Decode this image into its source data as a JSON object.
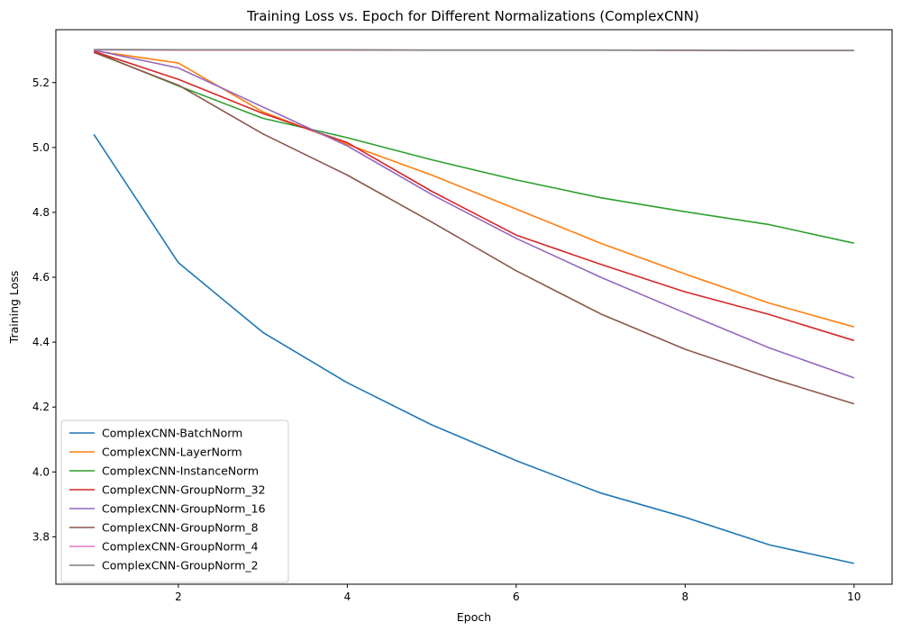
{
  "chart_data": {
    "type": "line",
    "title": "Training Loss vs. Epoch for Different Normalizations (ComplexCNN)",
    "xlabel": "Epoch",
    "ylabel": "Training Loss",
    "xlim": [
      0.55,
      10.45
    ],
    "ylim": [
      3.654,
      5.363
    ],
    "xticks": [
      2,
      4,
      6,
      8,
      10
    ],
    "yticks": [
      3.8,
      4.0,
      4.2,
      4.4,
      4.6,
      4.8,
      5.0,
      5.2
    ],
    "grid": false,
    "legend_position": "lower-left",
    "x": [
      1,
      2,
      3,
      4,
      5,
      6,
      7,
      8,
      9,
      10
    ],
    "series": [
      {
        "name": "ComplexCNN-BatchNorm",
        "color": "#1f77b4",
        "values": [
          5.04,
          4.645,
          4.43,
          4.275,
          4.145,
          4.035,
          3.935,
          3.86,
          3.775,
          3.718
        ]
      },
      {
        "name": "ComplexCNN-LayerNorm",
        "color": "#ff7f0e",
        "values": [
          5.298,
          5.26,
          5.11,
          5.01,
          4.915,
          4.81,
          4.705,
          4.61,
          4.52,
          4.447
        ]
      },
      {
        "name": "ComplexCNN-InstanceNorm",
        "color": "#2ca02c",
        "values": [
          5.295,
          5.19,
          5.09,
          5.03,
          4.962,
          4.9,
          4.845,
          4.802,
          4.762,
          4.705
        ]
      },
      {
        "name": "ComplexCNN-GroupNorm_32",
        "color": "#d62728",
        "values": [
          5.296,
          5.21,
          5.105,
          5.015,
          4.865,
          4.73,
          4.64,
          4.555,
          4.485,
          4.405
        ]
      },
      {
        "name": "ComplexCNN-GroupNorm_16",
        "color": "#9467bd",
        "values": [
          5.3,
          5.245,
          5.125,
          5.005,
          4.855,
          4.72,
          4.6,
          4.49,
          4.382,
          4.29
        ]
      },
      {
        "name": "ComplexCNN-GroupNorm_8",
        "color": "#8c564b",
        "values": [
          5.293,
          5.192,
          5.042,
          4.915,
          4.77,
          4.62,
          4.487,
          4.378,
          4.29,
          4.21
        ]
      },
      {
        "name": "ComplexCNN-GroupNorm_4",
        "color": "#e377c2",
        "values": [
          5.301,
          5.3,
          5.3,
          5.3,
          5.3,
          5.3,
          5.3,
          5.299,
          5.299,
          5.299
        ]
      },
      {
        "name": "ComplexCNN-GroupNorm_2",
        "color": "#7f7f7f",
        "values": [
          5.302,
          5.301,
          5.301,
          5.301,
          5.3,
          5.3,
          5.3,
          5.3,
          5.299,
          5.299
        ]
      }
    ]
  }
}
